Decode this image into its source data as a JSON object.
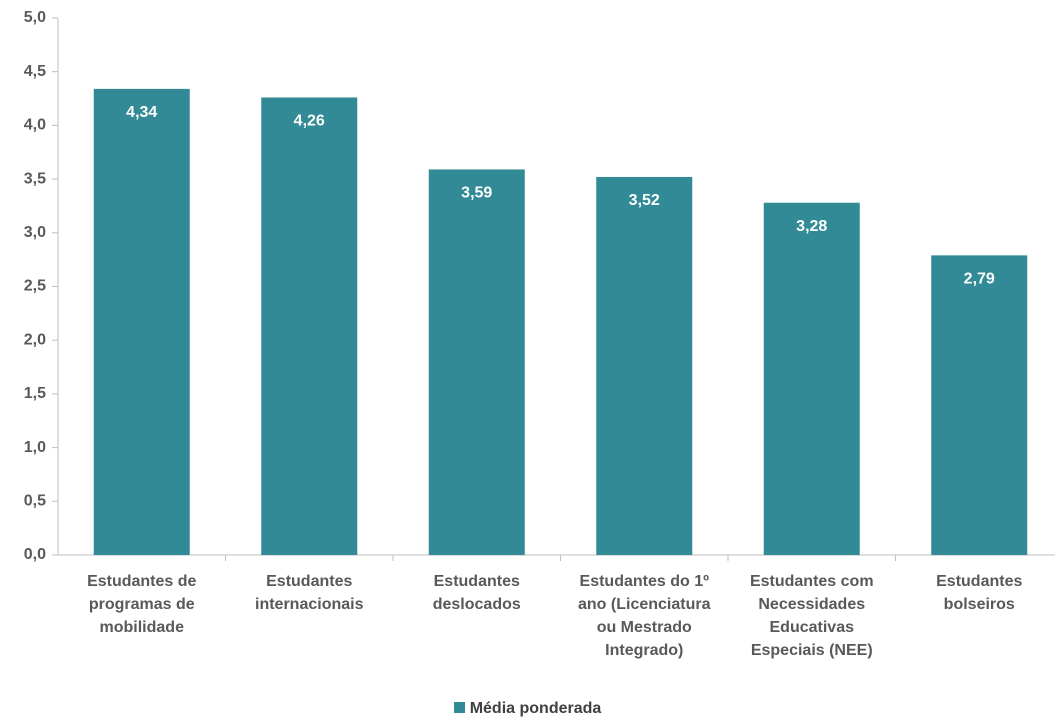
{
  "chart_data": {
    "type": "bar",
    "categories": [
      "Estudantes de programas de mobilidade",
      "Estudantes internacionais",
      "Estudantes deslocados",
      "Estudantes do 1º ano (Licenciatura ou Mestrado Integrado)",
      "Estudantes com Necessidades Educativas Especiais (NEE)",
      "Estudantes bolseiros"
    ],
    "series": [
      {
        "name": "Média ponderada",
        "color": "#318a96",
        "values": [
          4.34,
          4.26,
          3.59,
          3.52,
          3.28,
          2.79
        ],
        "value_labels": [
          "4,34",
          "4,26",
          "3,59",
          "3,52",
          "3,28",
          "2,79"
        ]
      }
    ],
    "ylim": [
      0,
      5
    ],
    "yticks": [
      {
        "value": 0,
        "label": "0,0"
      },
      {
        "value": 0.5,
        "label": "0,5"
      },
      {
        "value": 1,
        "label": "1,0"
      },
      {
        "value": 1.5,
        "label": "1,5"
      },
      {
        "value": 2,
        "label": "2,0"
      },
      {
        "value": 2.5,
        "label": "2,5"
      },
      {
        "value": 3,
        "label": "3,0"
      },
      {
        "value": 3.5,
        "label": "3,5"
      },
      {
        "value": 4,
        "label": "4,0"
      },
      {
        "value": 4.5,
        "label": "4,5"
      },
      {
        "value": 5,
        "label": "5,0"
      }
    ],
    "legend": "bottom"
  }
}
